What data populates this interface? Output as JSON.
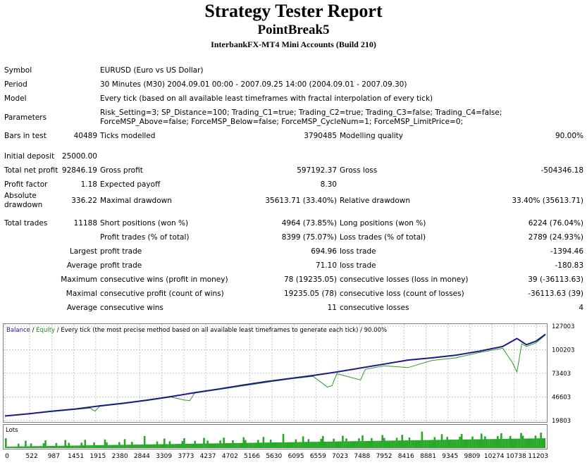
{
  "report": {
    "title": "Strategy Tester Report",
    "expert": "PointBreak5",
    "company": "InterbankFX-MT4 Mini Accounts (Build 210)"
  },
  "rows": {
    "symbol": {
      "label": "Symbol",
      "value": "EURUSD (Euro vs US Dollar)"
    },
    "period": {
      "label": "Period",
      "value": "30 Minutes (M30) 2004.09.01 00:00 - 2007.09.25 14:00 (2004.09.01 - 2007.09.30)"
    },
    "model": {
      "label": "Model",
      "value": "Every tick (based on all available least timeframes with fractal interpolation of every tick)"
    },
    "parameters": {
      "label": "Parameters",
      "value": "Risk_Setting=3; SP_Distance=100; Trading_C1=true; Trading_C2=true; Trading_C3=false; Trading_C4=false; ForceMSP_Above=false; ForceMSP_Below=false; ForceMSP_CycleNum=1; ForceMSP_LimitPrice=0;"
    },
    "bars": {
      "label": "Bars in test",
      "value": "40489",
      "l2": "Ticks modelled",
      "v2": "3790485",
      "l3": "Modelling quality",
      "v3": "90.00%"
    },
    "deposit": {
      "label": "Initial deposit",
      "value": "25000.00"
    },
    "netprofit": {
      "label": "Total net profit",
      "value": "92846.19",
      "l2": "Gross profit",
      "v2": "597192.37",
      "l3": "Gross loss",
      "v3": "-504346.18"
    },
    "pfactor": {
      "label": "Profit factor",
      "value": "1.18",
      "l2": "Expected payoff",
      "v2": "8.30"
    },
    "absdd": {
      "label": "Absolute drawdown",
      "value": "336.22",
      "l2": "Maximal drawdown",
      "v2": "35613.71 (33.40%)",
      "l3": "Relative drawdown",
      "v3": "33.40% (35613.71)"
    },
    "trades": {
      "label": "Total trades",
      "value": "11188",
      "l2": "Short positions (won %)",
      "v2": "4964 (73.85%)",
      "l3": "Long positions (won %)",
      "v3": "6224 (76.04%)"
    },
    "profittrades": {
      "l2": "Profit trades (% of total)",
      "v2": "8399 (75.07%)",
      "l3": "Loss trades (% of total)",
      "v3": "2789 (24.93%)"
    },
    "largest": {
      "pre": "Largest",
      "l2": "profit trade",
      "v2": "694.96",
      "l3": "loss trade",
      "v3": "-1394.46"
    },
    "average": {
      "pre": "Average",
      "l2": "profit trade",
      "v2": "71.10",
      "l3": "loss trade",
      "v3": "-180.83"
    },
    "maximum": {
      "pre": "Maximum",
      "l2": "consecutive wins (profit in money)",
      "v2": "78 (19235.05)",
      "l3": "consecutive losses (loss in money)",
      "v3": "39 (-36113.63)"
    },
    "maximal": {
      "pre": "Maximal",
      "l2": "consecutive profit (count of wins)",
      "v2": "19235.05 (78)",
      "l3": "consecutive loss (count of losses)",
      "v3": "-36113.63 (39)"
    },
    "avgcons": {
      "pre": "Average",
      "l2": "consecutive wins",
      "v2": "11",
      "l3": "consecutive losses",
      "v3": "4"
    }
  },
  "chart_data": {
    "type": "line",
    "legend": {
      "balance": "Balance",
      "sep1": " / ",
      "equity": "Equity",
      "sep2": " / ",
      "rest": "Every tick (the most precise method based on all available least timeframes to generate each tick) / 90.00%"
    },
    "lots_label": "Lots",
    "y_ticks": [
      "127003",
      "100203",
      "73403",
      "46603",
      "19803"
    ],
    "x_ticks": [
      "0",
      "522",
      "987",
      "1451",
      "1915",
      "2380",
      "2844",
      "3309",
      "3773",
      "4237",
      "4702",
      "5166",
      "5630",
      "6095",
      "6559",
      "7023",
      "7488",
      "7952",
      "8416",
      "8881",
      "9345",
      "9809",
      "10274",
      "10738",
      "11203"
    ],
    "ylim": [
      19803,
      127003
    ],
    "xlim": [
      0,
      11400
    ],
    "colors": {
      "balance": "#1a1a8c",
      "equity": "#2a9a2a",
      "lots": "#27a827",
      "grid": "#c8c8c8"
    },
    "series": [
      {
        "name": "Balance",
        "x": [
          0,
          500,
          1000,
          1500,
          2000,
          2500,
          3000,
          3500,
          4000,
          4500,
          5000,
          5500,
          6000,
          6500,
          7000,
          7500,
          8000,
          8500,
          9000,
          9500,
          10000,
          10500,
          10800,
          11000,
          11200,
          11400
        ],
        "values": [
          25000,
          27500,
          30500,
          33000,
          36500,
          39500,
          43000,
          47000,
          51500,
          55500,
          60000,
          64000,
          67500,
          71000,
          75000,
          79500,
          84000,
          88500,
          91000,
          94000,
          98500,
          104000,
          113000,
          106000,
          110000,
          117800
        ]
      },
      {
        "name": "Equity",
        "x": [
          0,
          500,
          1000,
          1500,
          1800,
          1900,
          2000,
          2500,
          3000,
          3500,
          3800,
          3900,
          4000,
          4500,
          5000,
          5500,
          6000,
          6500,
          6800,
          6900,
          7000,
          7500,
          7600,
          8000,
          8500,
          9000,
          9500,
          10000,
          10500,
          10700,
          10800,
          10900,
          11000,
          11200,
          11400
        ],
        "values": [
          25000,
          27500,
          30000,
          32500,
          34000,
          30500,
          36000,
          39000,
          42500,
          46500,
          43000,
          42500,
          51000,
          55000,
          59000,
          63000,
          67000,
          70000,
          58000,
          59500,
          73000,
          66000,
          78000,
          82000,
          80000,
          88000,
          91000,
          97000,
          102000,
          86000,
          75000,
          107000,
          104000,
          108000,
          117000
        ]
      }
    ]
  }
}
